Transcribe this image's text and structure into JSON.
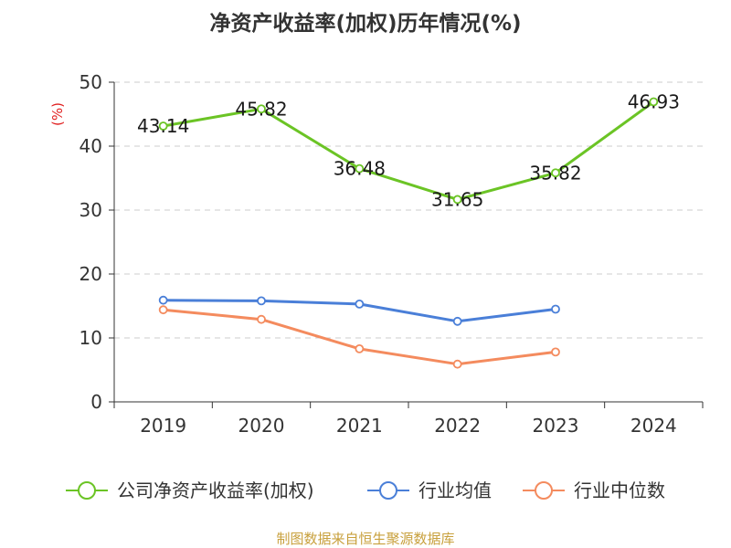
{
  "chart_data": {
    "type": "line",
    "title": "净资产收益率(加权)历年情况(%)",
    "ylabel": "(%)",
    "xlabel": "",
    "categories": [
      "2019",
      "2020",
      "2021",
      "2022",
      "2023",
      "2024"
    ],
    "ylim": [
      0,
      50
    ],
    "yticks": [
      0,
      10,
      20,
      30,
      40,
      50
    ],
    "grid": true,
    "legend": "bottom",
    "series": [
      {
        "name": "公司净资产收益率(加权)",
        "color": "#6bc425",
        "values": [
          43.14,
          45.82,
          36.48,
          31.65,
          35.82,
          46.93
        ],
        "labels": [
          "43.14",
          "45.82",
          "36.48",
          "31.65",
          "35.82",
          "46.93"
        ],
        "show_labels": true
      },
      {
        "name": "行业均值",
        "color": "#4a7fd8",
        "values": [
          15.9,
          15.8,
          15.3,
          12.6,
          14.5,
          null
        ],
        "show_labels": false
      },
      {
        "name": "行业中位数",
        "color": "#f48b5e",
        "values": [
          14.4,
          12.9,
          8.3,
          5.9,
          7.8,
          null
        ],
        "show_labels": false
      }
    ]
  },
  "colors": {
    "unit": "#e02020",
    "source": "#c8a03c",
    "axis": "#333333",
    "grid": "#cccccc"
  },
  "source_text": "制图数据来自恒生聚源数据库"
}
